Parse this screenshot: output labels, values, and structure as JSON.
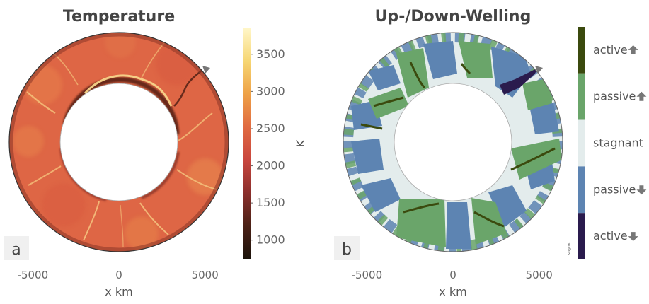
{
  "chart_data": [
    {
      "type": "heatmap",
      "panel": "a",
      "title": "Temperature",
      "xlabel": "x km",
      "x_ticks": [
        -5000,
        0,
        5000
      ],
      "colorbar": {
        "label": "K",
        "ticks": [
          1000,
          1500,
          2000,
          2500,
          3000,
          3500
        ],
        "range": [
          750,
          3850
        ],
        "colors": [
          "#1c130b",
          "#4b2116",
          "#8b2f2c",
          "#c9463e",
          "#e06a41",
          "#eea146",
          "#f6d673",
          "#fff6c8"
        ]
      },
      "annulus": {
        "inner_radius_km": 3480,
        "outer_radius_km": 6370
      },
      "marker": "arrow",
      "colors": {
        "field": "#e06a41",
        "cold": "#4b2116",
        "hot": "#fbe3a0"
      }
    },
    {
      "type": "heatmap",
      "panel": "b",
      "title": "Up-/Down-Welling",
      "xlabel": "x km",
      "x_ticks": [
        -5000,
        0,
        5000
      ],
      "categories": [
        {
          "label": "active",
          "arrow": "up",
          "color": "#3b4a0e"
        },
        {
          "label": "passive",
          "arrow": "up",
          "color": "#6aa56a"
        },
        {
          "label": "stagnant",
          "arrow": "none",
          "color": "#e3ecec"
        },
        {
          "label": "passive",
          "arrow": "down",
          "color": "#5d84b2"
        },
        {
          "label": "active",
          "arrow": "down",
          "color": "#2a1b4d"
        }
      ],
      "colorbar_side_text": "StagLab",
      "annulus": {
        "inner_radius_km": 3480,
        "outer_radius_km": 6370
      },
      "marker": "arrow"
    }
  ]
}
